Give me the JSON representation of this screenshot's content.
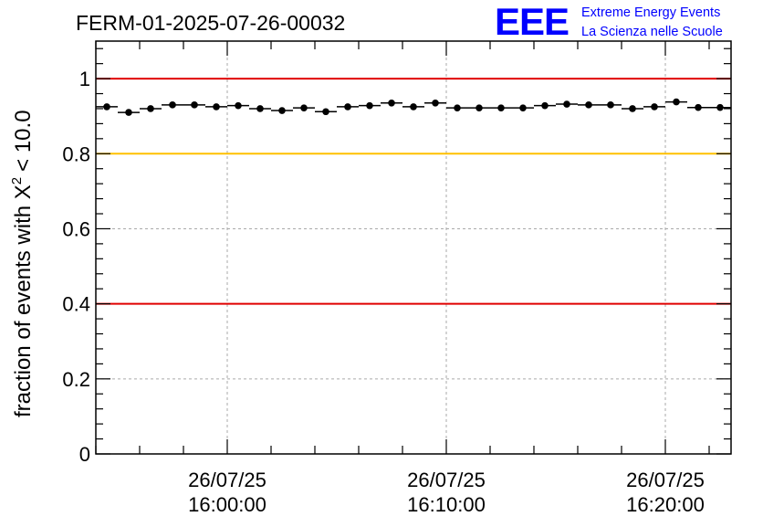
{
  "chart_data": {
    "type": "scatter",
    "title": "FERM-01-2025-07-26-00032",
    "ylabel": "fraction of events with",
    "ylabel_chi_symbol": "X",
    "ylabel_superscript": "2",
    "ylabel_suffix": "< 10.0",
    "xlabel": "",
    "ylim": [
      0,
      1.1
    ],
    "y_ticks": [
      {
        "value": 0,
        "label": "0"
      },
      {
        "value": 0.2,
        "label": "0.2"
      },
      {
        "value": 0.4,
        "label": "0.4"
      },
      {
        "value": 0.6,
        "label": "0.6"
      },
      {
        "value": 0.8,
        "label": "0.8"
      },
      {
        "value": 1,
        "label": "1"
      }
    ],
    "xlim": [
      "2025-07-26 15:54:00",
      "2025-07-26 16:23:00"
    ],
    "x_ticks": [
      {
        "value": "2025-07-26 16:00:00",
        "date_label": "26/07/25",
        "time_label": "16:00:00"
      },
      {
        "value": "2025-07-26 16:10:00",
        "date_label": "26/07/25",
        "time_label": "16:10:00"
      },
      {
        "value": "2025-07-26 16:20:00",
        "date_label": "26/07/25",
        "time_label": "16:20:00"
      }
    ],
    "grid": true,
    "reference_lines": [
      {
        "y": 1.0,
        "color": "#e00000"
      },
      {
        "y": 0.8,
        "color": "#ffc000"
      },
      {
        "y": 0.4,
        "color": "#e00000"
      }
    ],
    "series": [
      {
        "color": "#000000",
        "points": [
          {
            "x": "2025-07-26 15:54:30",
            "y": 0.925
          },
          {
            "x": "2025-07-26 15:55:30",
            "y": 0.91
          },
          {
            "x": "2025-07-26 15:56:30",
            "y": 0.92
          },
          {
            "x": "2025-07-26 15:57:30",
            "y": 0.93
          },
          {
            "x": "2025-07-26 15:58:30",
            "y": 0.93
          },
          {
            "x": "2025-07-26 15:59:30",
            "y": 0.925
          },
          {
            "x": "2025-07-26 16:00:30",
            "y": 0.928
          },
          {
            "x": "2025-07-26 16:01:30",
            "y": 0.92
          },
          {
            "x": "2025-07-26 16:02:30",
            "y": 0.915
          },
          {
            "x": "2025-07-26 16:03:30",
            "y": 0.922
          },
          {
            "x": "2025-07-26 16:04:30",
            "y": 0.912
          },
          {
            "x": "2025-07-26 16:05:30",
            "y": 0.925
          },
          {
            "x": "2025-07-26 16:06:30",
            "y": 0.928
          },
          {
            "x": "2025-07-26 16:07:30",
            "y": 0.935
          },
          {
            "x": "2025-07-26 16:08:30",
            "y": 0.925
          },
          {
            "x": "2025-07-26 16:09:30",
            "y": 0.935
          },
          {
            "x": "2025-07-26 16:10:30",
            "y": 0.922
          },
          {
            "x": "2025-07-26 16:11:30",
            "y": 0.922
          },
          {
            "x": "2025-07-26 16:12:30",
            "y": 0.922
          },
          {
            "x": "2025-07-26 16:13:30",
            "y": 0.922
          },
          {
            "x": "2025-07-26 16:14:30",
            "y": 0.928
          },
          {
            "x": "2025-07-26 16:15:30",
            "y": 0.932
          },
          {
            "x": "2025-07-26 16:16:30",
            "y": 0.93
          },
          {
            "x": "2025-07-26 16:17:30",
            "y": 0.93
          },
          {
            "x": "2025-07-26 16:18:30",
            "y": 0.92
          },
          {
            "x": "2025-07-26 16:19:30",
            "y": 0.925
          },
          {
            "x": "2025-07-26 16:20:30",
            "y": 0.938
          },
          {
            "x": "2025-07-26 16:21:30",
            "y": 0.923
          },
          {
            "x": "2025-07-26 16:22:30",
            "y": 0.923
          }
        ]
      }
    ]
  },
  "branding": {
    "logo_text": "EEE",
    "line1": "Extreme Energy Events",
    "line2": "La Scienza nelle Scuole",
    "color": "#0000ff"
  }
}
